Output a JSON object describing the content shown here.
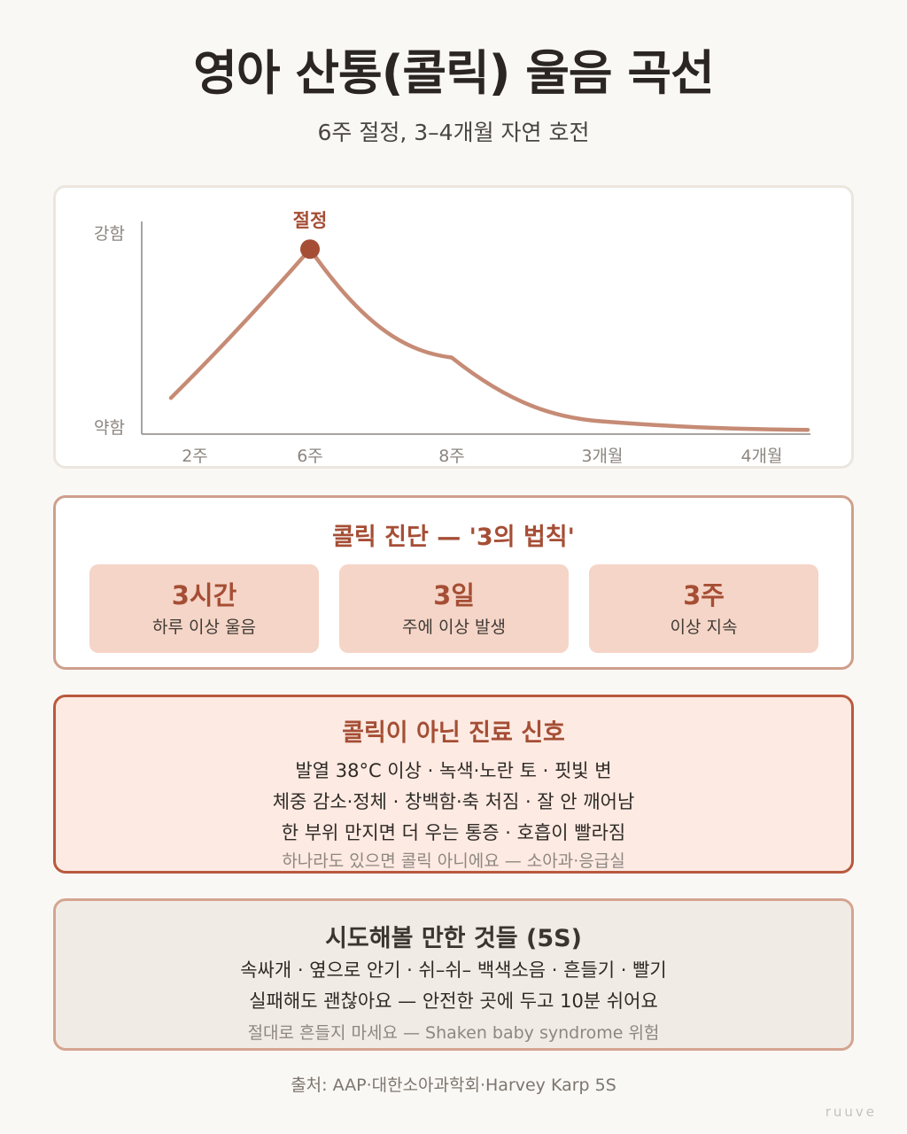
{
  "title": "영아 산통(콜릭) 울음 곡선",
  "subtitle": "6주 절정, 3–4개월 자연 호전",
  "chart_data": {
    "type": "line",
    "ylabel_top": "강함",
    "ylabel_bottom": "약함",
    "x_ticks": [
      "2주",
      "6주",
      "8주",
      "3개월",
      "4개월"
    ],
    "peak_label": "절정",
    "peak_x": "6주",
    "series": [
      {
        "x": [
          "2주",
          "6주",
          "8주",
          "3개월",
          "4개월"
        ],
        "values": [
          0.17,
          0.87,
          0.36,
          0.06,
          0.02
        ]
      }
    ],
    "ylim": [
      0,
      1
    ],
    "colors": {
      "line": "#c68b75",
      "peak": "#a54e35",
      "axis": "#8c8680"
    }
  },
  "rule": {
    "title": "콜릭 진단 — '3의 법칙'",
    "boxes": [
      {
        "value": "3시간",
        "desc": "하루 이상 울음"
      },
      {
        "value": "3일",
        "desc": "주에 이상 발생"
      },
      {
        "value": "3주",
        "desc": "이상 지속"
      }
    ]
  },
  "warning": {
    "title": "콜릭이 아닌 진료 신호",
    "lines": [
      "발열 38°C 이상 · 녹색·노란 토 · 핏빛 변",
      "체중 감소·정체 · 창백함·축 처짐 · 잘 안 깨어남",
      "한 부위 만지면 더 우는 통증 · 호흡이 빨라짐"
    ],
    "note": "하나라도 있으면 콜릭 아니에요 — 소아과·응급실"
  },
  "tips": {
    "title": "시도해볼 만한 것들 (5S)",
    "lines": [
      "속싸개 · 옆으로 안기 · 쉬–쉬– 백색소음 · 흔들기 · 빨기",
      "실패해도 괜찮아요 — 안전한 곳에 두고 10분 쉬어요"
    ],
    "note": "절대로 흔들지 마세요 — Shaken baby syndrome 위험"
  },
  "source": "출처: AAP·대한소아과학회·Harvey Karp 5S",
  "brand": "ruuve",
  "colors": {
    "accent": "#a54e35",
    "box_fill": "#f5d5c7",
    "warn_fill": "#fdeae2",
    "tips_fill": "#f1ebe5"
  }
}
